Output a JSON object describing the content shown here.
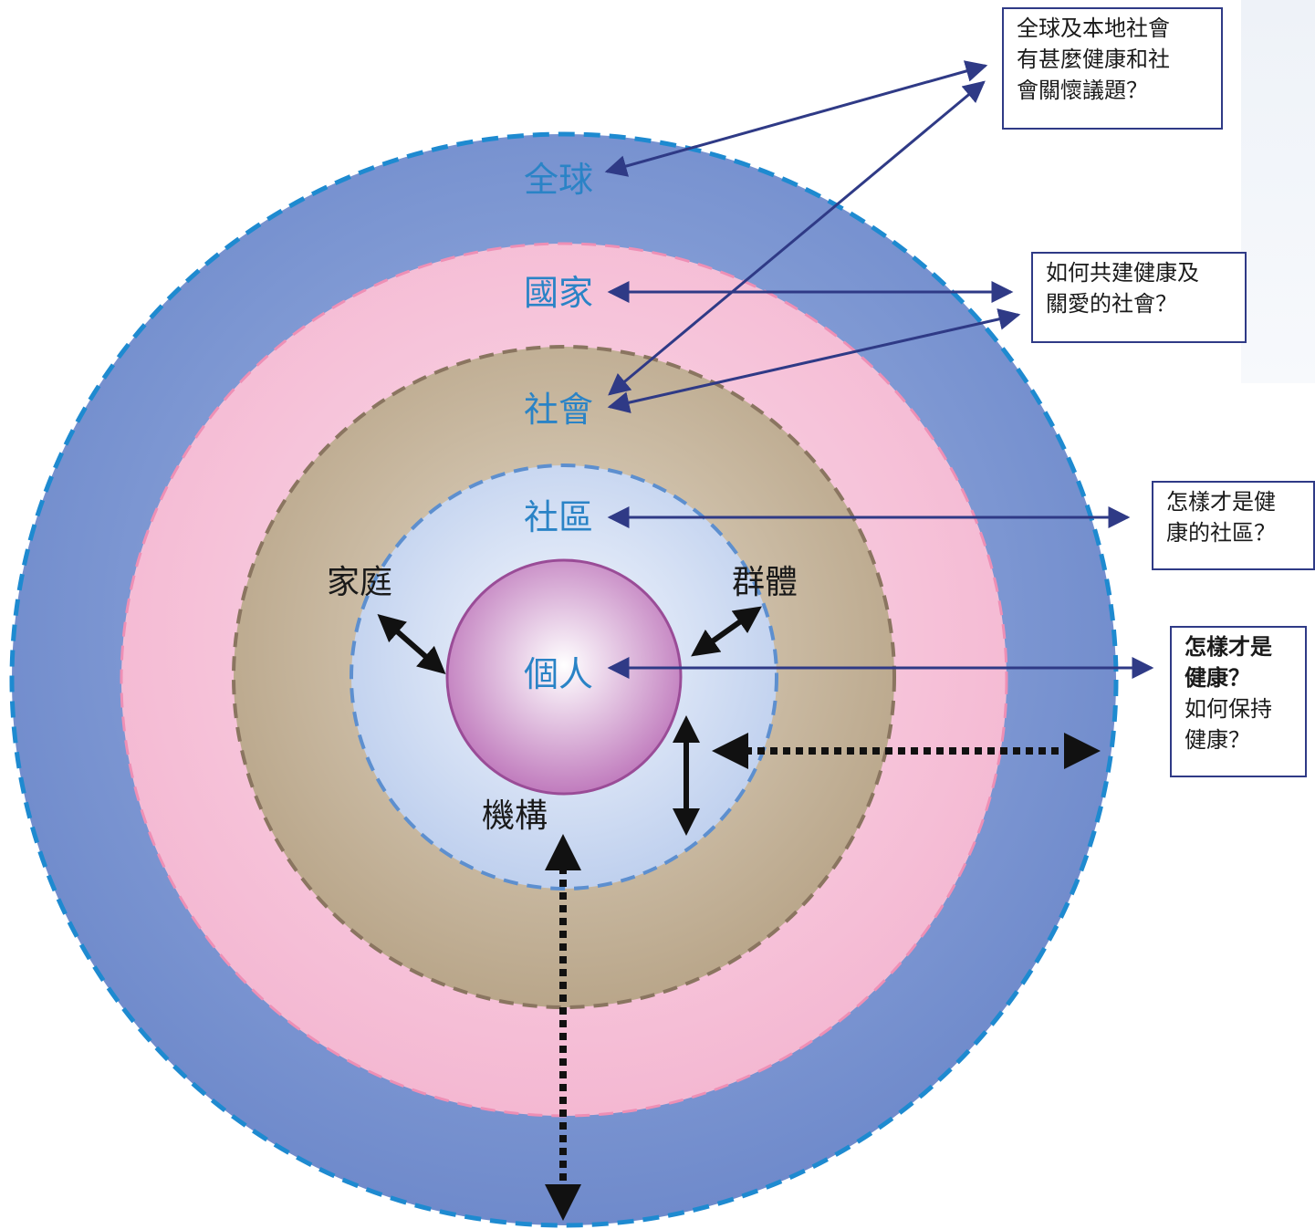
{
  "rings": {
    "global": "全球",
    "national": "國家",
    "society": "社會",
    "community": "社區",
    "individual": "個人"
  },
  "relations": {
    "family": "家庭",
    "group": "群體",
    "institution": "機構"
  },
  "questions": {
    "global_issues": [
      "全球及本地社會",
      "有甚麼健康和社",
      "會關懷議題？"
    ],
    "build_society": [
      "如何共建健康及",
      "關愛的社會？"
    ],
    "healthy_community": [
      "怎樣才是健",
      "康的社區？"
    ],
    "personal_health": {
      "bold": [
        "怎樣才是",
        "健康？"
      ],
      "normal": [
        "如何保持",
        "健康？"
      ]
    }
  },
  "colors": {
    "global_ring": "#7a95d2",
    "national_ring": "#f6bfd6",
    "society_ring": "#c6b49a",
    "community_ring": "#c9d8f1",
    "individual_core": "#c98bc6",
    "arrow_blue": "#2f3a86",
    "label_blue": "#2a83c6"
  }
}
